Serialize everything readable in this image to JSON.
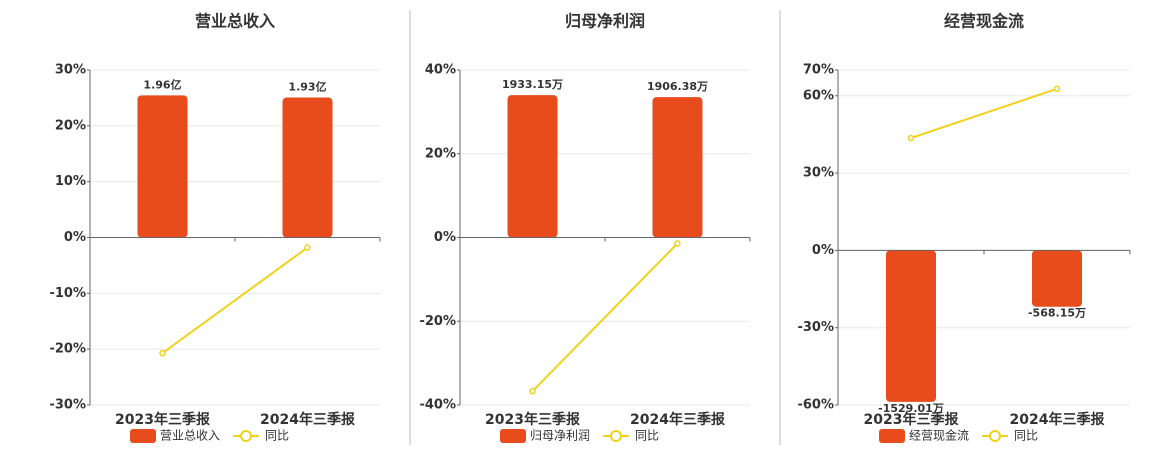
{
  "chart_data": [
    {
      "type": "bar",
      "title": "营业总收入",
      "categories": [
        "2023年三季报",
        "2024年三季报"
      ],
      "series": [
        {
          "name": "营业总收入",
          "color": "#e84b1c",
          "axis": "y2",
          "values": [
            1.96,
            1.93
          ],
          "value_labels": [
            "1.96亿",
            "1.93亿"
          ]
        },
        {
          "name": "同比",
          "type": "line",
          "color": "#f0d21c",
          "values": [
            -20.7,
            -1.8
          ]
        }
      ],
      "ylim": [
        -30,
        30
      ],
      "yticks": [
        {
          "value": -30,
          "label": "-30%"
        },
        {
          "value": -20,
          "label": "-20%"
        },
        {
          "value": -10,
          "label": "-10%"
        },
        {
          "value": 0,
          "label": "0%"
        },
        {
          "value": 10,
          "label": "10%"
        },
        {
          "value": 20,
          "label": "20%"
        },
        {
          "value": 30,
          "label": "30%"
        }
      ],
      "y2lim": [
        -2.31,
        2.31
      ],
      "grid": true
    },
    {
      "type": "bar",
      "title": "归母净利润",
      "categories": [
        "2023年三季报",
        "2024年三季报"
      ],
      "series": [
        {
          "name": "归母净利润",
          "color": "#e84b1c",
          "axis": "y2",
          "values": [
            1933.15,
            1906.38
          ],
          "value_labels": [
            "1933.15万",
            "1906.38万"
          ]
        },
        {
          "name": "同比",
          "type": "line",
          "color": "#f0d21c",
          "values": [
            -36.7,
            -1.4
          ]
        }
      ],
      "ylim": [
        -40,
        40
      ],
      "yticks": [
        {
          "value": -40,
          "label": "-40%"
        },
        {
          "value": -20,
          "label": "-20%"
        },
        {
          "value": 0,
          "label": "0%"
        },
        {
          "value": 20,
          "label": "20%"
        },
        {
          "value": 40,
          "label": "40%"
        }
      ],
      "y2lim": [
        -2274,
        2274
      ],
      "grid": true
    },
    {
      "type": "bar",
      "title": "经营现金流",
      "categories": [
        "2023年三季报",
        "2024年三季报"
      ],
      "series": [
        {
          "name": "经营现金流",
          "color": "#e84b1c",
          "axis": "y2",
          "values": [
            -1529.01,
            -568.15
          ],
          "value_labels": [
            "-1529.01万",
            "-568.15万"
          ]
        },
        {
          "name": "同比",
          "type": "line",
          "color": "#f0d21c",
          "values": [
            43.6,
            62.7
          ]
        }
      ],
      "ylim": [
        -60,
        70
      ],
      "yticks": [
        {
          "value": -60,
          "label": "-60%"
        },
        {
          "value": -30,
          "label": "-30%"
        },
        {
          "value": 0,
          "label": "0%"
        },
        {
          "value": 30,
          "label": "30%"
        },
        {
          "value": 60,
          "label": "60%"
        },
        {
          "value": 70,
          "label": "70%"
        }
      ],
      "y2lim": [
        -1560,
        1820
      ],
      "grid": true
    }
  ]
}
